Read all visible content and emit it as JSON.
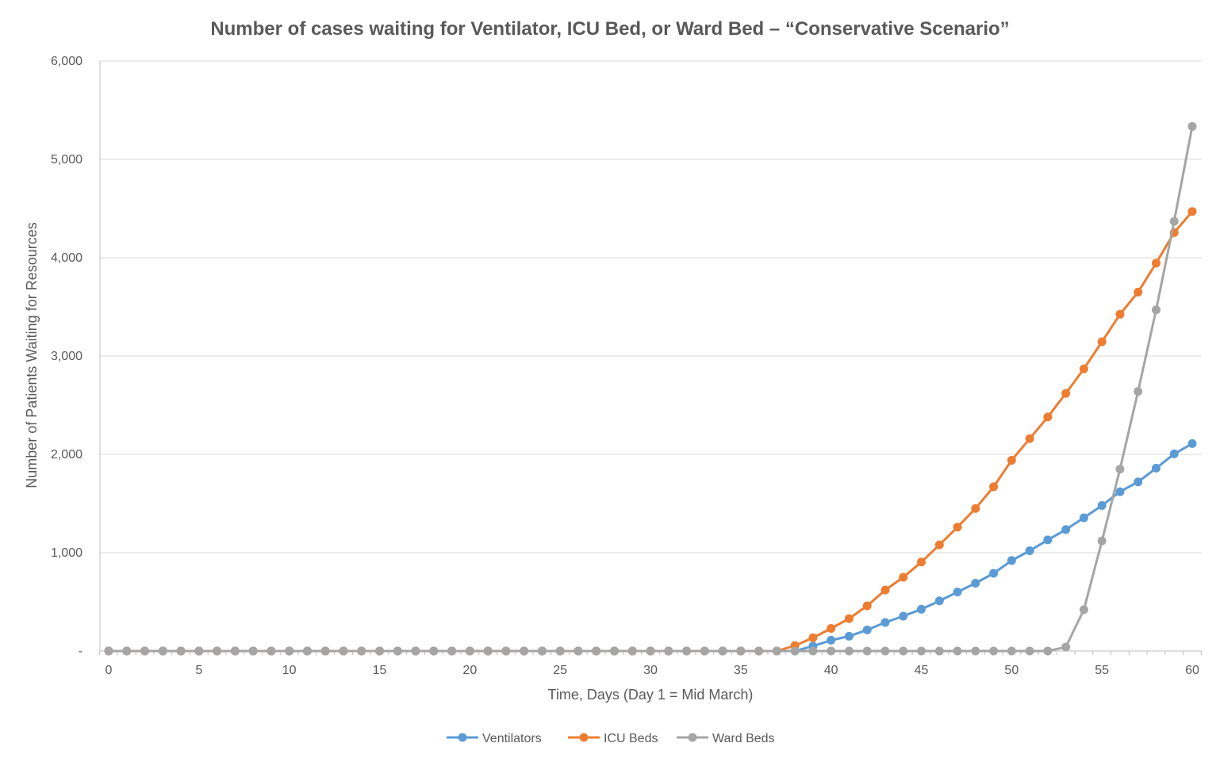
{
  "chart_data": {
    "type": "line",
    "title": "Number of cases waiting for Ventilator, ICU Bed, or Ward Bed – “Conservative Scenario”",
    "xlabel": "Time, Days (Day 1 = Mid March)",
    "ylabel": "Number of Patients Waiting for Resources",
    "xlim": [
      0,
      60
    ],
    "ylim": [
      0,
      6000
    ],
    "x_ticks": [
      "0",
      "5",
      "10",
      "15",
      "20",
      "25",
      "30",
      "35",
      "40",
      "45",
      "50",
      "55",
      "60"
    ],
    "y_ticks": [
      "-",
      "1,000",
      "2,000",
      "3,000",
      "4,000",
      "5,000",
      "6,000"
    ],
    "grid": true,
    "legend_position": "bottom",
    "series": [
      {
        "name": "Ventilators",
        "color": "#5b9bd5",
        "x": [
          0,
          1,
          2,
          3,
          4,
          5,
          6,
          7,
          8,
          9,
          10,
          11,
          12,
          13,
          14,
          15,
          16,
          17,
          18,
          19,
          20,
          21,
          22,
          23,
          24,
          25,
          26,
          27,
          28,
          29,
          30,
          31,
          32,
          33,
          34,
          35,
          36,
          37,
          38,
          39,
          40,
          41,
          42,
          43,
          44,
          45,
          46,
          47,
          48,
          49,
          50,
          51,
          52,
          53,
          54,
          55,
          56,
          57,
          58,
          59,
          60
        ],
        "values": [
          0,
          0,
          0,
          0,
          0,
          0,
          0,
          0,
          0,
          0,
          0,
          0,
          0,
          0,
          0,
          0,
          0,
          0,
          0,
          0,
          0,
          0,
          0,
          0,
          0,
          0,
          0,
          0,
          0,
          0,
          0,
          0,
          0,
          0,
          0,
          0,
          0,
          0,
          0,
          50,
          110,
          150,
          215,
          290,
          355,
          425,
          510,
          600,
          690,
          790,
          920,
          1020,
          1130,
          1235,
          1355,
          1480,
          1620,
          1720,
          1860,
          2005,
          2110
        ]
      },
      {
        "name": "ICU Beds",
        "color": "#ed7d31",
        "x": [
          0,
          1,
          2,
          3,
          4,
          5,
          6,
          7,
          8,
          9,
          10,
          11,
          12,
          13,
          14,
          15,
          16,
          17,
          18,
          19,
          20,
          21,
          22,
          23,
          24,
          25,
          26,
          27,
          28,
          29,
          30,
          31,
          32,
          33,
          34,
          35,
          36,
          37,
          38,
          39,
          40,
          41,
          42,
          43,
          44,
          45,
          46,
          47,
          48,
          49,
          50,
          51,
          52,
          53,
          54,
          55,
          56,
          57,
          58,
          59,
          60
        ],
        "values": [
          0,
          0,
          0,
          0,
          0,
          0,
          0,
          0,
          0,
          0,
          0,
          0,
          0,
          0,
          0,
          0,
          0,
          0,
          0,
          0,
          0,
          0,
          0,
          0,
          0,
          0,
          0,
          0,
          0,
          0,
          0,
          0,
          0,
          0,
          0,
          0,
          0,
          0,
          55,
          135,
          230,
          330,
          460,
          620,
          750,
          905,
          1080,
          1260,
          1450,
          1670,
          1940,
          2160,
          2380,
          2620,
          2870,
          3145,
          3425,
          3650,
          3945,
          4255,
          4470
        ]
      },
      {
        "name": "Ward Beds",
        "color": "#a5a5a5",
        "x": [
          0,
          1,
          2,
          3,
          4,
          5,
          6,
          7,
          8,
          9,
          10,
          11,
          12,
          13,
          14,
          15,
          16,
          17,
          18,
          19,
          20,
          21,
          22,
          23,
          24,
          25,
          26,
          27,
          28,
          29,
          30,
          31,
          32,
          33,
          34,
          35,
          36,
          37,
          38,
          39,
          40,
          41,
          42,
          43,
          44,
          45,
          46,
          47,
          48,
          49,
          50,
          51,
          52,
          53,
          54,
          55,
          56,
          57,
          58,
          59,
          60
        ],
        "values": [
          0,
          0,
          0,
          0,
          0,
          0,
          0,
          0,
          0,
          0,
          0,
          0,
          0,
          0,
          0,
          0,
          0,
          0,
          0,
          0,
          0,
          0,
          0,
          0,
          0,
          0,
          0,
          0,
          0,
          0,
          0,
          0,
          0,
          0,
          0,
          0,
          0,
          0,
          0,
          0,
          0,
          0,
          0,
          0,
          0,
          0,
          0,
          0,
          0,
          0,
          0,
          0,
          0,
          40,
          420,
          1120,
          1850,
          2640,
          3470,
          4370,
          5335
        ]
      }
    ]
  }
}
